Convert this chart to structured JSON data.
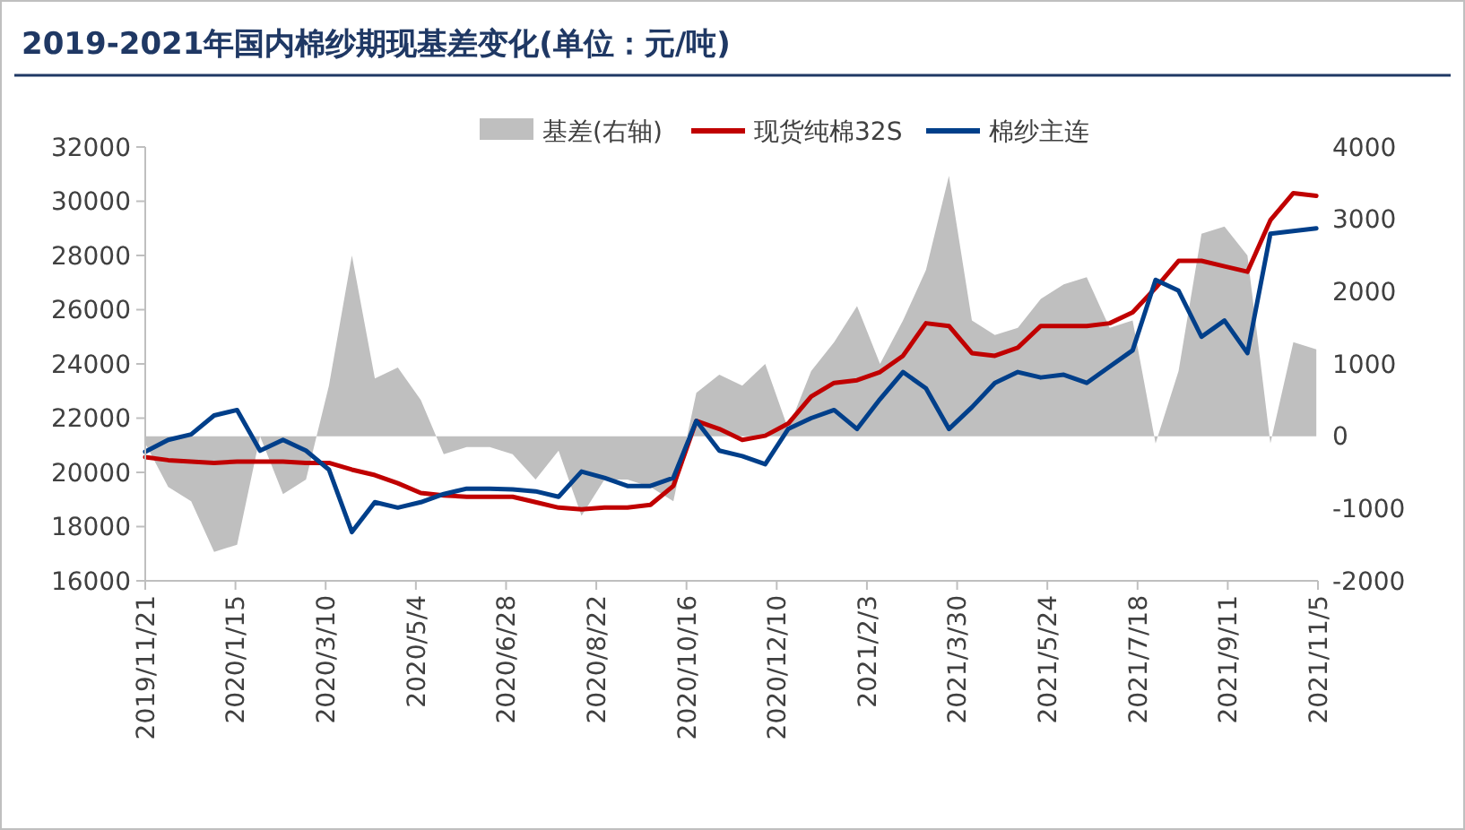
{
  "chart_data": {
    "type": "line",
    "title": "2019-2021年国内棉纱期现基差变化(单位：元/吨)",
    "x": [
      "2019-11-21",
      "2019-12-05",
      "2019-12-19",
      "2020-01-02",
      "2020-01-16",
      "2020-01-30",
      "2020-02-13",
      "2020-02-27",
      "2020-03-12",
      "2020-03-26",
      "2020-04-09",
      "2020-04-23",
      "2020-05-07",
      "2020-05-21",
      "2020-06-04",
      "2020-06-18",
      "2020-07-02",
      "2020-07-16",
      "2020-07-30",
      "2020-08-13",
      "2020-08-27",
      "2020-09-10",
      "2020-09-24",
      "2020-10-08",
      "2020-10-22",
      "2020-11-05",
      "2020-11-19",
      "2020-12-03",
      "2020-12-17",
      "2020-12-31",
      "2021-01-14",
      "2021-01-28",
      "2021-02-11",
      "2021-02-25",
      "2021-03-11",
      "2021-03-25",
      "2021-04-08",
      "2021-04-22",
      "2021-05-06",
      "2021-05-20",
      "2021-06-03",
      "2021-06-17",
      "2021-07-01",
      "2021-07-15",
      "2021-07-29",
      "2021-08-12",
      "2021-08-26",
      "2021-09-09",
      "2021-09-23",
      "2021-10-07",
      "2021-10-21",
      "2021-11-04"
    ],
    "series": [
      {
        "name": "基差(右轴)",
        "type": "area",
        "axis": "y2",
        "color": "#bfbfbf",
        "values": [
          -100,
          -700,
          -900,
          -1600,
          -1500,
          0,
          -800,
          -600,
          700,
          2500,
          800,
          950,
          500,
          -250,
          -150,
          -150,
          -250,
          -600,
          -200,
          -1100,
          -600,
          -600,
          -700,
          -900,
          600,
          850,
          700,
          1000,
          100,
          900,
          1300,
          1800,
          1000,
          1600,
          2300,
          3600,
          1600,
          1400,
          1500,
          1900,
          2100,
          2200,
          1500,
          1600,
          -100,
          900,
          2800,
          2900,
          2500,
          -100,
          1300,
          1200
        ]
      },
      {
        "name": "现货纯棉32S",
        "color": "#c00000",
        "values": [
          20560,
          20450,
          20400,
          20350,
          20400,
          20400,
          20400,
          20350,
          20350,
          20100,
          19900,
          19600,
          19240,
          19150,
          19100,
          19100,
          19100,
          18900,
          18700,
          18640,
          18700,
          18700,
          18800,
          19500,
          21900,
          21600,
          21200,
          21350,
          21800,
          22800,
          23300,
          23400,
          23700,
          24300,
          25500,
          25400,
          24400,
          24300,
          24600,
          25400,
          25400,
          25400,
          25500,
          25900,
          26800,
          27800,
          27800,
          27600,
          27400,
          29300,
          30300,
          30200
        ]
      },
      {
        "name": "棉纱主连",
        "color": "#003f8a",
        "values": [
          20760,
          21200,
          21400,
          22100,
          22300,
          20800,
          21200,
          20800,
          20100,
          17800,
          18900,
          18700,
          18900,
          19200,
          19400,
          19400,
          19370,
          19300,
          19100,
          20030,
          19800,
          19500,
          19500,
          19800,
          21900,
          20800,
          20600,
          20300,
          21600,
          22000,
          22300,
          21600,
          22700,
          23700,
          23100,
          21600,
          22400,
          23300,
          23700,
          23500,
          23600,
          23300,
          23900,
          24500,
          27100,
          26700,
          25000,
          25600,
          24400,
          28800,
          28900,
          29000
        ]
      }
    ],
    "xlim": [
      "2019-11-21",
      "2021-11-05"
    ],
    "xticks": [
      {
        "value": "2019-11-21",
        "label": "2019/11/21"
      },
      {
        "value": "2020-01-15",
        "label": "2020/1/15"
      },
      {
        "value": "2020-03-10",
        "label": "2020/3/10"
      },
      {
        "value": "2020-05-04",
        "label": "2020/5/4"
      },
      {
        "value": "2020-06-28",
        "label": "2020/6/28"
      },
      {
        "value": "2020-08-22",
        "label": "2020/8/22"
      },
      {
        "value": "2020-10-16",
        "label": "2020/10/16"
      },
      {
        "value": "2020-12-10",
        "label": "2020/12/10"
      },
      {
        "value": "2021-02-03",
        "label": "2021/2/3"
      },
      {
        "value": "2021-03-30",
        "label": "2021/3/30"
      },
      {
        "value": "2021-05-24",
        "label": "2021/5/24"
      },
      {
        "value": "2021-07-18",
        "label": "2021/7/18"
      },
      {
        "value": "2021-09-11",
        "label": "2021/9/11"
      },
      {
        "value": "2021-11-05",
        "label": "2021/11/5"
      }
    ],
    "ylim": [
      16000,
      32000
    ],
    "yticks": [
      16000,
      18000,
      20000,
      22000,
      24000,
      26000,
      28000,
      30000,
      32000
    ],
    "y2lim": [
      -2000,
      4000
    ],
    "y2ticks": [
      -2000,
      -1000,
      0,
      1000,
      2000,
      3000,
      4000
    ],
    "legend": "top",
    "grid": false,
    "line_style": "solid",
    "marker": "none"
  }
}
